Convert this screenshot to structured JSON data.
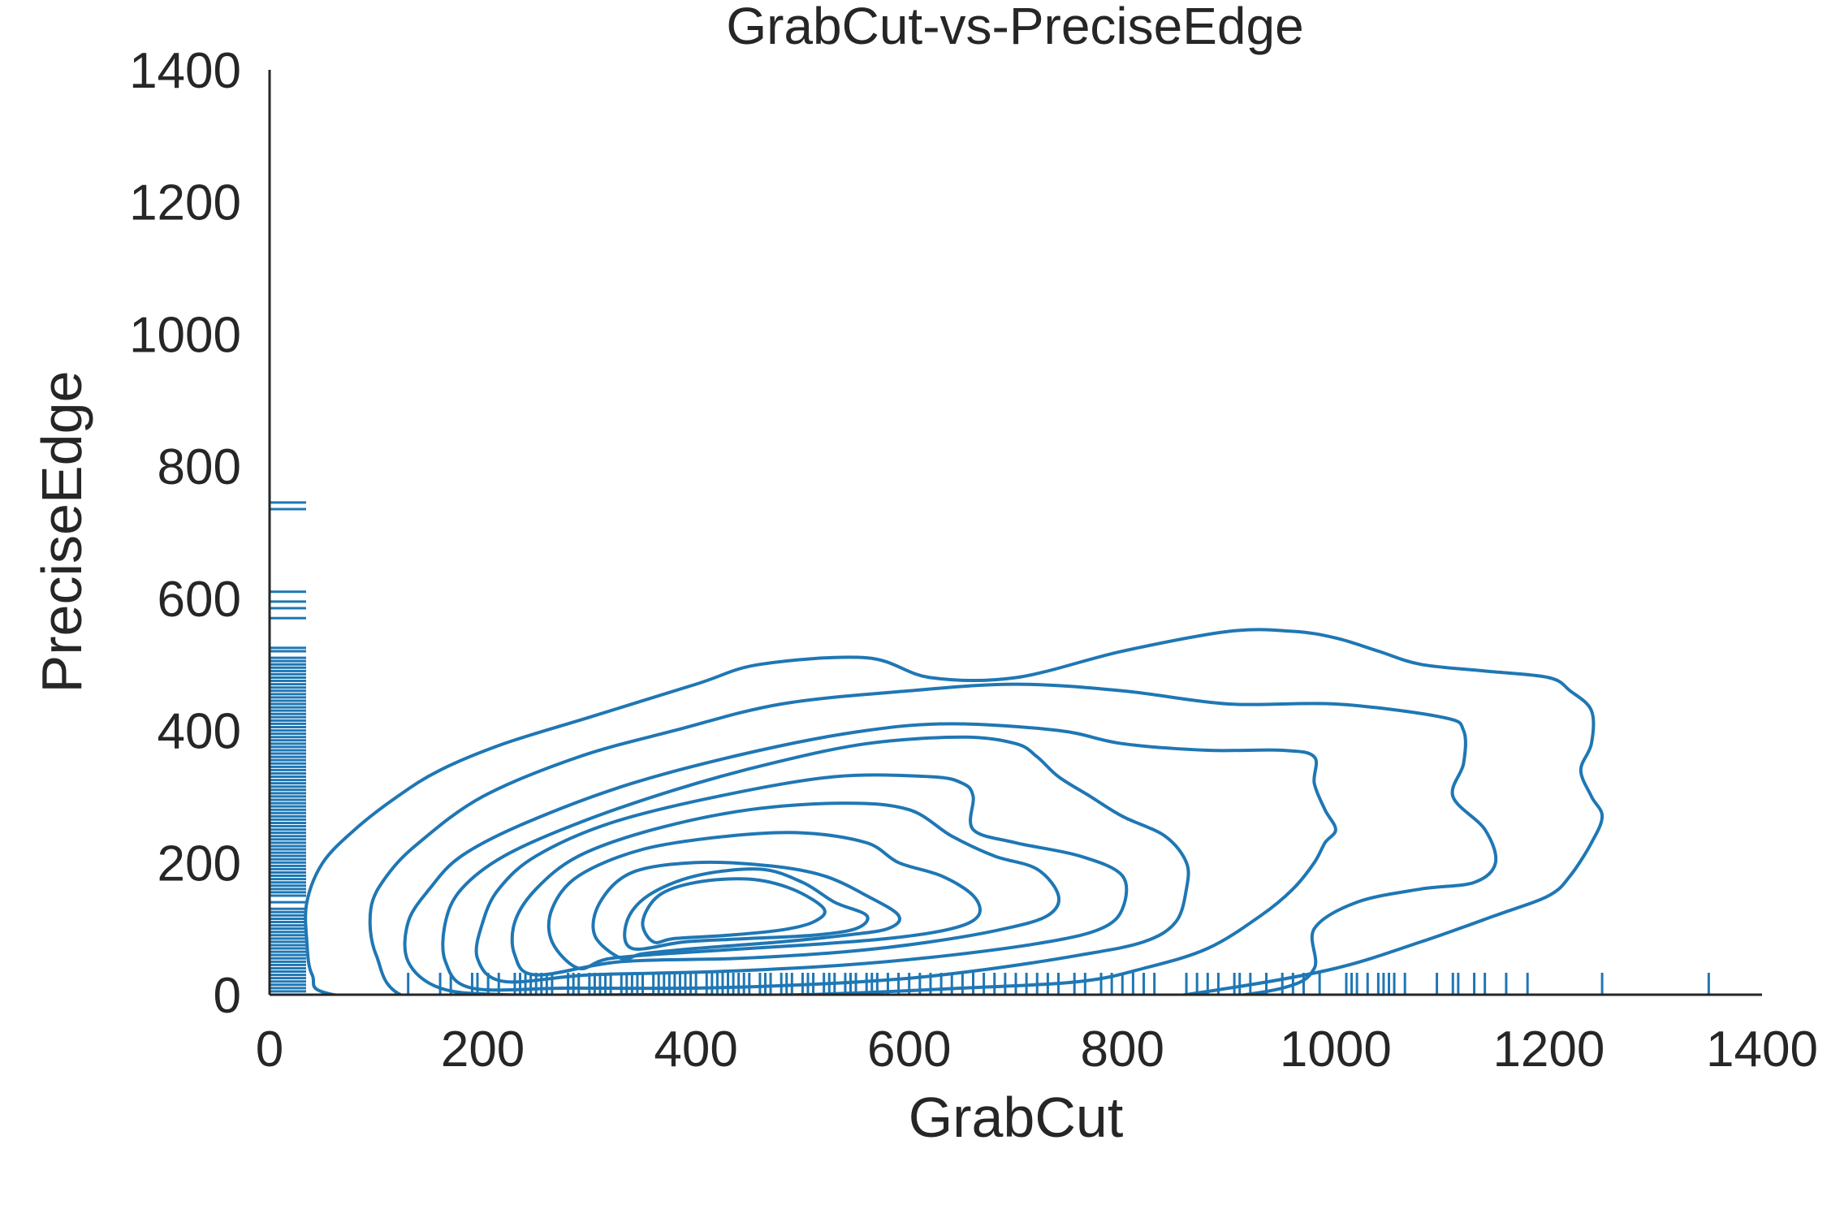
{
  "chart_data": {
    "type": "kde-contour",
    "title": "GrabCut-vs-PreciseEdge",
    "xlabel": "GrabCut",
    "ylabel": "PreciseEdge",
    "xlim": [
      0,
      1400
    ],
    "ylim": [
      0,
      1400
    ],
    "xticks": [
      0,
      200,
      400,
      600,
      800,
      1000,
      1200,
      1400
    ],
    "yticks": [
      0,
      200,
      400,
      600,
      800,
      1000,
      1200,
      1400
    ],
    "grid": false,
    "color": "#1f77b4",
    "contours": [
      [
        [
          60,
          0
        ],
        [
          40,
          30
        ],
        [
          35,
          80
        ],
        [
          35,
          140
        ],
        [
          50,
          200
        ],
        [
          80,
          250
        ],
        [
          120,
          300
        ],
        [
          160,
          340
        ],
        [
          220,
          380
        ],
        [
          300,
          420
        ],
        [
          400,
          470
        ],
        [
          460,
          500
        ],
        [
          560,
          510
        ],
        [
          620,
          480
        ],
        [
          700,
          480
        ],
        [
          800,
          520
        ],
        [
          900,
          550
        ],
        [
          960,
          550
        ],
        [
          1000,
          540
        ],
        [
          1040,
          520
        ],
        [
          1080,
          500
        ],
        [
          1140,
          490
        ],
        [
          1200,
          480
        ],
        [
          1220,
          460
        ],
        [
          1240,
          430
        ],
        [
          1240,
          380
        ],
        [
          1230,
          340
        ],
        [
          1240,
          300
        ],
        [
          1250,
          270
        ],
        [
          1240,
          230
        ],
        [
          1220,
          180
        ],
        [
          1200,
          150
        ],
        [
          1150,
          120
        ],
        [
          1080,
          80
        ],
        [
          1000,
          40
        ],
        [
          900,
          10
        ],
        [
          800,
          -10
        ],
        [
          600,
          -30
        ],
        [
          400,
          -30
        ],
        [
          200,
          -20
        ],
        [
          60,
          0
        ]
      ],
      [
        [
          130,
          -5
        ],
        [
          100,
          60
        ],
        [
          95,
          130
        ],
        [
          110,
          180
        ],
        [
          140,
          230
        ],
        [
          200,
          300
        ],
        [
          290,
          360
        ],
        [
          380,
          400
        ],
        [
          480,
          440
        ],
        [
          600,
          460
        ],
        [
          700,
          470
        ],
        [
          800,
          460
        ],
        [
          900,
          440
        ],
        [
          1000,
          440
        ],
        [
          1100,
          420
        ],
        [
          1120,
          400
        ],
        [
          1120,
          350
        ],
        [
          1110,
          300
        ],
        [
          1140,
          250
        ],
        [
          1150,
          200
        ],
        [
          1130,
          170
        ],
        [
          1080,
          160
        ],
        [
          1020,
          140
        ],
        [
          980,
          100
        ],
        [
          980,
          40
        ],
        [
          950,
          10
        ],
        [
          860,
          -10
        ],
        [
          760,
          -20
        ],
        [
          600,
          -25
        ],
        [
          400,
          -25
        ],
        [
          250,
          -20
        ],
        [
          130,
          -5
        ]
      ],
      [
        [
          160,
          10
        ],
        [
          130,
          50
        ],
        [
          130,
          110
        ],
        [
          150,
          160
        ],
        [
          180,
          210
        ],
        [
          240,
          260
        ],
        [
          340,
          320
        ],
        [
          460,
          370
        ],
        [
          560,
          400
        ],
        [
          640,
          410
        ],
        [
          740,
          400
        ],
        [
          800,
          380
        ],
        [
          880,
          370
        ],
        [
          950,
          370
        ],
        [
          980,
          360
        ],
        [
          980,
          320
        ],
        [
          990,
          280
        ],
        [
          1000,
          250
        ],
        [
          990,
          230
        ],
        [
          980,
          200
        ],
        [
          960,
          160
        ],
        [
          930,
          120
        ],
        [
          880,
          70
        ],
        [
          820,
          40
        ],
        [
          760,
          20
        ],
        [
          650,
          10
        ],
        [
          500,
          0
        ],
        [
          350,
          0
        ],
        [
          220,
          0
        ],
        [
          160,
          10
        ]
      ],
      [
        [
          190,
          10
        ],
        [
          165,
          50
        ],
        [
          165,
          110
        ],
        [
          180,
          160
        ],
        [
          220,
          210
        ],
        [
          290,
          260
        ],
        [
          380,
          310
        ],
        [
          470,
          350
        ],
        [
          560,
          380
        ],
        [
          650,
          390
        ],
        [
          700,
          380
        ],
        [
          720,
          360
        ],
        [
          740,
          330
        ],
        [
          770,
          300
        ],
        [
          800,
          270
        ],
        [
          840,
          240
        ],
        [
          860,
          200
        ],
        [
          860,
          160
        ],
        [
          850,
          110
        ],
        [
          820,
          80
        ],
        [
          760,
          60
        ],
        [
          680,
          40
        ],
        [
          600,
          25
        ],
        [
          500,
          15
        ],
        [
          400,
          10
        ],
        [
          280,
          10
        ],
        [
          190,
          10
        ]
      ],
      [
        [
          220,
          20
        ],
        [
          195,
          55
        ],
        [
          200,
          110
        ],
        [
          215,
          160
        ],
        [
          250,
          210
        ],
        [
          320,
          260
        ],
        [
          420,
          300
        ],
        [
          530,
          330
        ],
        [
          620,
          330
        ],
        [
          650,
          320
        ],
        [
          660,
          300
        ],
        [
          660,
          250
        ],
        [
          700,
          230
        ],
        [
          760,
          210
        ],
        [
          800,
          180
        ],
        [
          800,
          130
        ],
        [
          780,
          100
        ],
        [
          730,
          80
        ],
        [
          640,
          60
        ],
        [
          540,
          45
        ],
        [
          420,
          35
        ],
        [
          300,
          30
        ],
        [
          220,
          20
        ]
      ],
      [
        [
          250,
          30
        ],
        [
          230,
          60
        ],
        [
          230,
          110
        ],
        [
          250,
          160
        ],
        [
          290,
          210
        ],
        [
          360,
          250
        ],
        [
          450,
          280
        ],
        [
          540,
          290
        ],
        [
          600,
          280
        ],
        [
          640,
          240
        ],
        [
          680,
          210
        ],
        [
          720,
          190
        ],
        [
          740,
          150
        ],
        [
          730,
          120
        ],
        [
          690,
          100
        ],
        [
          620,
          80
        ],
        [
          540,
          65
        ],
        [
          440,
          55
        ],
        [
          330,
          50
        ],
        [
          250,
          30
        ]
      ],
      [
        [
          290,
          40
        ],
        [
          265,
          80
        ],
        [
          265,
          130
        ],
        [
          290,
          180
        ],
        [
          350,
          220
        ],
        [
          430,
          240
        ],
        [
          500,
          245
        ],
        [
          560,
          230
        ],
        [
          590,
          200
        ],
        [
          630,
          180
        ],
        [
          660,
          150
        ],
        [
          665,
          120
        ],
        [
          640,
          100
        ],
        [
          580,
          85
        ],
        [
          500,
          75
        ],
        [
          400,
          65
        ],
        [
          320,
          55
        ],
        [
          290,
          40
        ]
      ],
      [
        [
          330,
          55
        ],
        [
          305,
          90
        ],
        [
          310,
          140
        ],
        [
          340,
          185
        ],
        [
          400,
          200
        ],
        [
          470,
          195
        ],
        [
          520,
          180
        ],
        [
          560,
          150
        ],
        [
          590,
          120
        ],
        [
          580,
          100
        ],
        [
          540,
          90
        ],
        [
          480,
          80
        ],
        [
          400,
          70
        ],
        [
          350,
          62
        ],
        [
          330,
          55
        ]
      ],
      [
        [
          340,
          70
        ],
        [
          335,
          110
        ],
        [
          355,
          150
        ],
        [
          400,
          180
        ],
        [
          460,
          190
        ],
        [
          500,
          170
        ],
        [
          530,
          140
        ],
        [
          560,
          120
        ],
        [
          550,
          100
        ],
        [
          510,
          90
        ],
        [
          450,
          85
        ],
        [
          390,
          80
        ],
        [
          340,
          70
        ]
      ],
      [
        [
          360,
          80
        ],
        [
          350,
          110
        ],
        [
          365,
          150
        ],
        [
          400,
          170
        ],
        [
          450,
          175
        ],
        [
          490,
          160
        ],
        [
          520,
          130
        ],
        [
          510,
          110
        ],
        [
          480,
          98
        ],
        [
          430,
          90
        ],
        [
          380,
          85
        ],
        [
          360,
          80
        ]
      ]
    ],
    "rug_x": [
      130,
      160,
      170,
      190,
      195,
      205,
      215,
      230,
      235,
      240,
      245,
      250,
      255,
      260,
      265,
      280,
      285,
      290,
      300,
      305,
      310,
      315,
      320,
      330,
      335,
      340,
      345,
      350,
      360,
      365,
      370,
      375,
      380,
      385,
      390,
      395,
      400,
      410,
      415,
      420,
      425,
      430,
      435,
      440,
      445,
      450,
      460,
      465,
      470,
      480,
      485,
      490,
      500,
      505,
      510,
      520,
      525,
      530,
      540,
      545,
      550,
      560,
      565,
      570,
      580,
      590,
      600,
      610,
      620,
      630,
      640,
      650,
      660,
      670,
      680,
      690,
      700,
      710,
      720,
      730,
      740,
      755,
      765,
      780,
      790,
      800,
      810,
      820,
      830,
      860,
      870,
      880,
      890,
      905,
      910,
      920,
      935,
      950,
      960,
      970,
      985,
      1010,
      1015,
      1020,
      1030,
      1040,
      1045,
      1050,
      1055,
      1065,
      1095,
      1110,
      1115,
      1130,
      1140,
      1160,
      1180,
      1250,
      1350
    ],
    "rug_y": [
      0,
      5,
      10,
      15,
      20,
      25,
      30,
      35,
      40,
      45,
      50,
      55,
      60,
      65,
      70,
      75,
      80,
      85,
      90,
      95,
      100,
      105,
      110,
      115,
      120,
      125,
      130,
      140,
      150,
      155,
      160,
      165,
      170,
      175,
      180,
      185,
      190,
      195,
      200,
      205,
      210,
      215,
      220,
      225,
      230,
      235,
      240,
      245,
      250,
      255,
      260,
      265,
      270,
      275,
      280,
      285,
      290,
      295,
      300,
      305,
      310,
      315,
      320,
      325,
      330,
      335,
      340,
      345,
      350,
      355,
      360,
      365,
      370,
      375,
      380,
      385,
      390,
      395,
      400,
      405,
      410,
      415,
      420,
      425,
      430,
      435,
      440,
      445,
      450,
      455,
      460,
      465,
      470,
      475,
      480,
      485,
      490,
      495,
      500,
      505,
      510,
      520,
      525,
      570,
      585,
      595,
      610,
      735,
      745
    ]
  }
}
